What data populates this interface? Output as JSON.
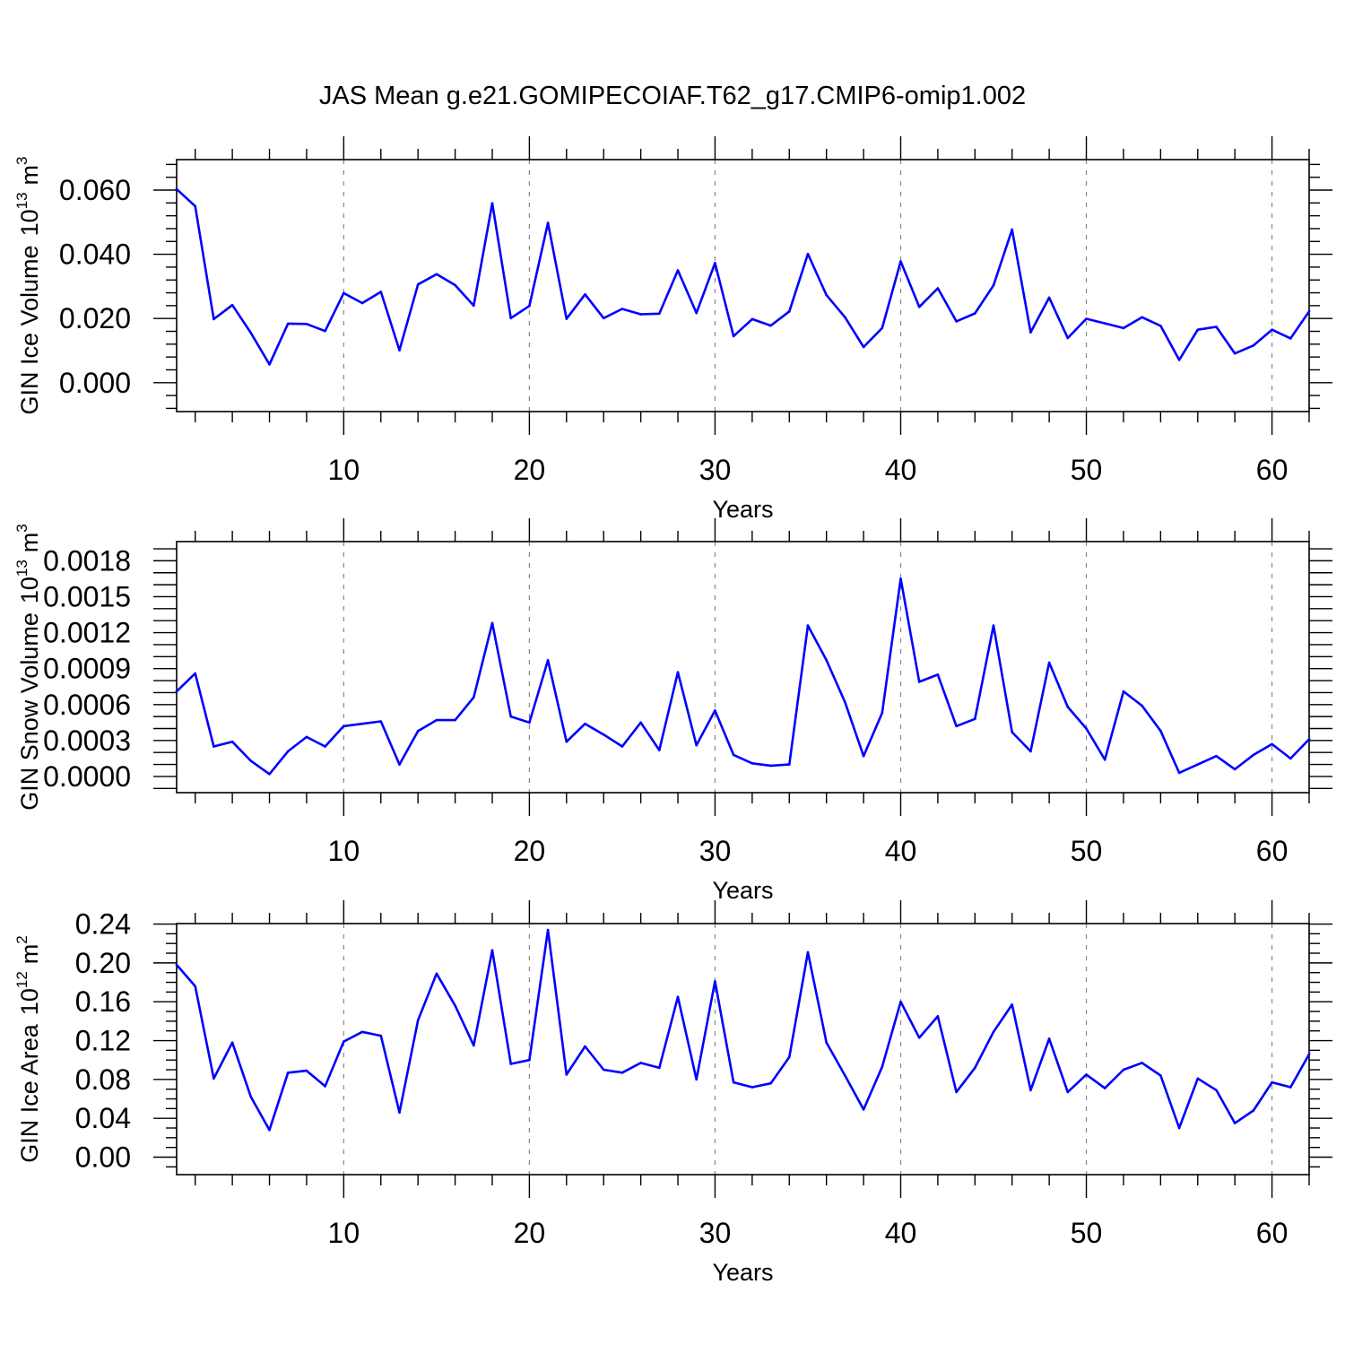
{
  "title": "JAS Mean g.e21.GOMIPECOIAF.T62_g17.CMIP6-omip1.002",
  "colors": {
    "line": "#0000ff",
    "axes": "#000000",
    "grid": "#888888"
  },
  "chart_data": [
    {
      "type": "line",
      "ylabel": "GIN Ice Volume",
      "unit_base": "10",
      "unit_exp": "13",
      "unit_sym": "m",
      "unit_sym_exp": "3",
      "xlabel": "Years",
      "xlim": [
        1,
        62
      ],
      "ylim": [
        -0.009,
        0.0695
      ],
      "xticks": [
        10,
        20,
        30,
        40,
        50,
        60
      ],
      "xtick_labels": [
        "10",
        "20",
        "30",
        "40",
        "50",
        "60"
      ],
      "yticks": [
        0.0,
        0.02,
        0.04,
        0.06
      ],
      "ytick_labels": [
        "0.000",
        "0.020",
        "0.040",
        "0.060"
      ],
      "y_minor_step": 0.004,
      "grid_x": true,
      "series": [
        {
          "name": "GIN Ice Volume",
          "x": [
            1,
            2,
            3,
            4,
            5,
            6,
            7,
            8,
            9,
            10,
            11,
            12,
            13,
            14,
            15,
            16,
            17,
            18,
            19,
            20,
            21,
            22,
            23,
            24,
            25,
            26,
            27,
            28,
            29,
            30,
            31,
            32,
            33,
            34,
            35,
            36,
            37,
            38,
            39,
            40,
            41,
            42,
            43,
            44,
            45,
            46,
            47,
            48,
            49,
            50,
            51,
            52,
            53,
            54,
            55,
            56,
            57,
            58,
            59,
            60,
            61,
            62
          ],
          "values": [
            0.0603,
            0.055,
            0.0198,
            0.0242,
            0.0155,
            0.0057,
            0.0184,
            0.0183,
            0.0161,
            0.0279,
            0.0248,
            0.0283,
            0.0101,
            0.0306,
            0.0338,
            0.0304,
            0.024,
            0.0559,
            0.0201,
            0.0239,
            0.0498,
            0.0199,
            0.0275,
            0.0201,
            0.023,
            0.0213,
            0.0215,
            0.035,
            0.0217,
            0.0373,
            0.0145,
            0.0198,
            0.0178,
            0.0222,
            0.0401,
            0.0273,
            0.0204,
            0.0111,
            0.017,
            0.0378,
            0.0236,
            0.0294,
            0.0191,
            0.0216,
            0.0303,
            0.0477,
            0.0157,
            0.0265,
            0.0139,
            0.0199,
            0.0185,
            0.017,
            0.0204,
            0.0177,
            0.0071,
            0.0165,
            0.0174,
            0.0091,
            0.0116,
            0.0165,
            0.0138,
            0.0222
          ]
        }
      ]
    },
    {
      "type": "line",
      "ylabel": "GIN Snow Volume",
      "unit_base": "10",
      "unit_exp": "13",
      "unit_sym": "m",
      "unit_sym_exp": "3",
      "xlabel": "Years",
      "xlim": [
        1,
        62
      ],
      "ylim": [
        -0.000135,
        0.00196
      ],
      "xticks": [
        10,
        20,
        30,
        40,
        50,
        60
      ],
      "xtick_labels": [
        "10",
        "20",
        "30",
        "40",
        "50",
        "60"
      ],
      "yticks": [
        0.0,
        0.0003,
        0.0006,
        0.0009,
        0.0012,
        0.0015,
        0.0018
      ],
      "ytick_labels": [
        "0.0000",
        "0.0003",
        "0.0006",
        "0.0009",
        "0.0012",
        "0.0015",
        "0.0018"
      ],
      "y_minor_step": 0.0001,
      "grid_x": true,
      "series": [
        {
          "name": "GIN Snow Volume",
          "x": [
            1,
            2,
            3,
            4,
            5,
            6,
            7,
            8,
            9,
            10,
            11,
            12,
            13,
            14,
            15,
            16,
            17,
            18,
            19,
            20,
            21,
            22,
            23,
            24,
            25,
            26,
            27,
            28,
            29,
            30,
            31,
            32,
            33,
            34,
            35,
            36,
            37,
            38,
            39,
            40,
            41,
            42,
            43,
            44,
            45,
            46,
            47,
            48,
            49,
            50,
            51,
            52,
            53,
            54,
            55,
            56,
            57,
            58,
            59,
            60,
            61,
            62
          ],
          "values": [
            0.00071,
            0.00086,
            0.00025,
            0.00029,
            0.00013,
            2e-05,
            0.00021,
            0.00033,
            0.00025,
            0.00042,
            0.00044,
            0.00046,
            0.0001,
            0.00038,
            0.00047,
            0.00047,
            0.00066,
            0.00128,
            0.0005,
            0.00045,
            0.00097,
            0.00029,
            0.00044,
            0.00035,
            0.00025,
            0.00045,
            0.00022,
            0.00087,
            0.00026,
            0.00055,
            0.00018,
            0.00011,
            9e-05,
            0.0001,
            0.00126,
            0.00097,
            0.00062,
            0.00017,
            0.00053,
            0.00165,
            0.00079,
            0.00085,
            0.00042,
            0.00048,
            0.00126,
            0.00037,
            0.00021,
            0.00095,
            0.00058,
            0.0004,
            0.00014,
            0.00071,
            0.00059,
            0.00038,
            3e-05,
            0.0001,
            0.00017,
            6e-05,
            0.00018,
            0.00027,
            0.00015,
            0.00031
          ]
        }
      ]
    },
    {
      "type": "line",
      "ylabel": "GIN Ice Area",
      "unit_base": "10",
      "unit_exp": "12",
      "unit_sym": "m",
      "unit_sym_exp": "2",
      "xlabel": "Years",
      "xlim": [
        1,
        62
      ],
      "ylim": [
        -0.018,
        0.2405
      ],
      "xticks": [
        10,
        20,
        30,
        40,
        50,
        60
      ],
      "xtick_labels": [
        "10",
        "20",
        "30",
        "40",
        "50",
        "60"
      ],
      "yticks": [
        0.0,
        0.04,
        0.08,
        0.12,
        0.16,
        0.2,
        0.24
      ],
      "ytick_labels": [
        "0.00",
        "0.04",
        "0.08",
        "0.12",
        "0.16",
        "0.20",
        "0.24"
      ],
      "y_minor_step": 0.01,
      "grid_x": true,
      "series": [
        {
          "name": "GIN Ice Area",
          "x": [
            1,
            2,
            3,
            4,
            5,
            6,
            7,
            8,
            9,
            10,
            11,
            12,
            13,
            14,
            15,
            16,
            17,
            18,
            19,
            20,
            21,
            22,
            23,
            24,
            25,
            26,
            27,
            28,
            29,
            30,
            31,
            32,
            33,
            34,
            35,
            36,
            37,
            38,
            39,
            40,
            41,
            42,
            43,
            44,
            45,
            46,
            47,
            48,
            49,
            50,
            51,
            52,
            53,
            54,
            55,
            56,
            57,
            58,
            59,
            60,
            61,
            62
          ],
          "values": [
            0.198,
            0.176,
            0.081,
            0.118,
            0.062,
            0.028,
            0.087,
            0.089,
            0.073,
            0.119,
            0.129,
            0.125,
            0.046,
            0.141,
            0.189,
            0.156,
            0.115,
            0.213,
            0.096,
            0.1,
            0.234,
            0.085,
            0.114,
            0.09,
            0.087,
            0.097,
            0.092,
            0.165,
            0.08,
            0.181,
            0.077,
            0.072,
            0.076,
            0.103,
            0.211,
            0.118,
            0.084,
            0.049,
            0.093,
            0.16,
            0.123,
            0.145,
            0.067,
            0.092,
            0.129,
            0.157,
            0.069,
            0.122,
            0.067,
            0.085,
            0.071,
            0.09,
            0.097,
            0.084,
            0.03,
            0.081,
            0.069,
            0.035,
            0.048,
            0.077,
            0.072,
            0.106
          ]
        }
      ]
    }
  ]
}
